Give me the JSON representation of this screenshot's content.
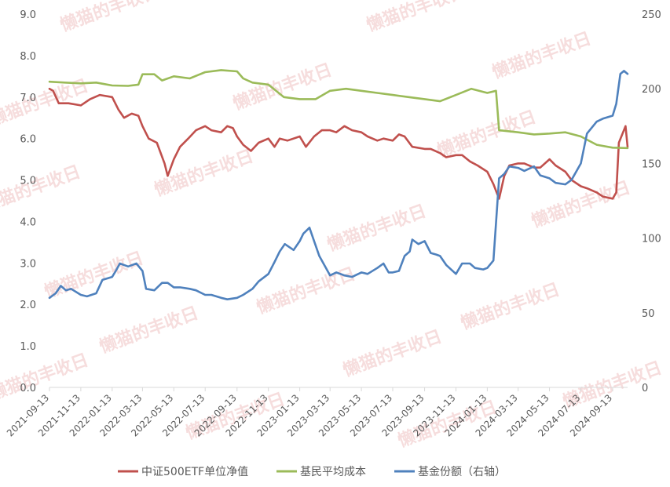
{
  "chart_data": {
    "type": "line",
    "title": "",
    "xlabel": "",
    "ylabel": "",
    "y_left": {
      "ylim": [
        0,
        9
      ],
      "ticks": [
        "0.0",
        "1.0",
        "2.0",
        "3.0",
        "4.0",
        "5.0",
        "6.0",
        "7.0",
        "8.0",
        "9.0"
      ]
    },
    "y_right": {
      "ylim": [
        0,
        250
      ],
      "ticks": [
        "0",
        "50",
        "100",
        "150",
        "200",
        "250"
      ]
    },
    "x_ticks": [
      "2021-09-13",
      "2021-11-13",
      "2022-01-13",
      "2022-03-13",
      "2022-05-13",
      "2022-07-13",
      "2022-09-13",
      "2022-11-13",
      "2023-01-13",
      "2023-03-13",
      "2023-05-13",
      "2023-07-13",
      "2023-09-13",
      "2023-11-13",
      "2024-01-13",
      "2024-03-13",
      "2024-05-13",
      "2024-07-13",
      "2024-09-13"
    ],
    "grid": false,
    "legend_position": "bottom",
    "series": [
      {
        "name": "中证500ETF单位净值",
        "axis": "left",
        "color": "#c0504d",
        "points": [
          [
            "2021-09-13",
            7.2
          ],
          [
            "2021-09-20",
            7.15
          ],
          [
            "2021-10-01",
            6.85
          ],
          [
            "2021-10-20",
            6.85
          ],
          [
            "2021-11-13",
            6.8
          ],
          [
            "2021-12-01",
            6.95
          ],
          [
            "2021-12-20",
            7.05
          ],
          [
            "2022-01-13",
            7.0
          ],
          [
            "2022-01-25",
            6.7
          ],
          [
            "2022-02-05",
            6.5
          ],
          [
            "2022-02-20",
            6.6
          ],
          [
            "2022-03-05",
            6.55
          ],
          [
            "2022-03-13",
            6.3
          ],
          [
            "2022-03-25",
            6.0
          ],
          [
            "2022-04-10",
            5.9
          ],
          [
            "2022-04-25",
            5.4
          ],
          [
            "2022-05-01",
            5.1
          ],
          [
            "2022-05-13",
            5.5
          ],
          [
            "2022-05-25",
            5.8
          ],
          [
            "2022-06-10",
            6.0
          ],
          [
            "2022-06-25",
            6.2
          ],
          [
            "2022-07-13",
            6.3
          ],
          [
            "2022-07-25",
            6.2
          ],
          [
            "2022-08-13",
            6.15
          ],
          [
            "2022-08-25",
            6.3
          ],
          [
            "2022-09-05",
            6.25
          ],
          [
            "2022-09-13",
            6.05
          ],
          [
            "2022-09-25",
            5.85
          ],
          [
            "2022-10-10",
            5.7
          ],
          [
            "2022-10-25",
            5.9
          ],
          [
            "2022-11-13",
            6.0
          ],
          [
            "2022-11-25",
            5.8
          ],
          [
            "2022-12-05",
            6.0
          ],
          [
            "2022-12-20",
            5.95
          ],
          [
            "2023-01-13",
            6.05
          ],
          [
            "2023-01-25",
            5.8
          ],
          [
            "2023-02-10",
            6.05
          ],
          [
            "2023-02-25",
            6.2
          ],
          [
            "2023-03-13",
            6.2
          ],
          [
            "2023-03-25",
            6.15
          ],
          [
            "2023-04-10",
            6.3
          ],
          [
            "2023-04-25",
            6.2
          ],
          [
            "2023-05-13",
            6.15
          ],
          [
            "2023-05-25",
            6.05
          ],
          [
            "2023-06-13",
            5.95
          ],
          [
            "2023-06-25",
            6.0
          ],
          [
            "2023-07-13",
            5.95
          ],
          [
            "2023-07-25",
            6.1
          ],
          [
            "2023-08-05",
            6.05
          ],
          [
            "2023-08-20",
            5.8
          ],
          [
            "2023-09-13",
            5.75
          ],
          [
            "2023-09-25",
            5.75
          ],
          [
            "2023-10-13",
            5.65
          ],
          [
            "2023-10-25",
            5.55
          ],
          [
            "2023-11-13",
            5.6
          ],
          [
            "2023-11-25",
            5.6
          ],
          [
            "2023-12-10",
            5.45
          ],
          [
            "2023-12-25",
            5.35
          ],
          [
            "2024-01-13",
            5.2
          ],
          [
            "2024-01-25",
            4.9
          ],
          [
            "2024-02-05",
            4.55
          ],
          [
            "2024-02-15",
            5.1
          ],
          [
            "2024-02-25",
            5.35
          ],
          [
            "2024-03-13",
            5.4
          ],
          [
            "2024-03-25",
            5.4
          ],
          [
            "2024-04-13",
            5.3
          ],
          [
            "2024-04-25",
            5.3
          ],
          [
            "2024-05-13",
            5.5
          ],
          [
            "2024-05-25",
            5.35
          ],
          [
            "2024-06-13",
            5.2
          ],
          [
            "2024-06-25",
            5.0
          ],
          [
            "2024-07-13",
            4.85
          ],
          [
            "2024-07-25",
            4.8
          ],
          [
            "2024-08-13",
            4.7
          ],
          [
            "2024-08-25",
            4.6
          ],
          [
            "2024-09-13",
            4.55
          ],
          [
            "2024-09-20",
            4.7
          ],
          [
            "2024-09-25",
            5.9
          ],
          [
            "2024-10-08",
            6.3
          ],
          [
            "2024-10-12",
            5.8
          ]
        ]
      },
      {
        "name": "基民平均成本",
        "axis": "left",
        "color": "#9bbb59",
        "points": [
          [
            "2021-09-13",
            7.37
          ],
          [
            "2021-10-13",
            7.35
          ],
          [
            "2021-11-13",
            7.33
          ],
          [
            "2021-12-13",
            7.35
          ],
          [
            "2022-01-13",
            7.28
          ],
          [
            "2022-02-13",
            7.27
          ],
          [
            "2022-03-05",
            7.3
          ],
          [
            "2022-03-13",
            7.55
          ],
          [
            "2022-04-05",
            7.55
          ],
          [
            "2022-04-20",
            7.4
          ],
          [
            "2022-05-13",
            7.5
          ],
          [
            "2022-06-13",
            7.45
          ],
          [
            "2022-07-13",
            7.6
          ],
          [
            "2022-08-13",
            7.65
          ],
          [
            "2022-09-13",
            7.62
          ],
          [
            "2022-09-25",
            7.45
          ],
          [
            "2022-10-13",
            7.35
          ],
          [
            "2022-11-13",
            7.3
          ],
          [
            "2022-12-13",
            7.0
          ],
          [
            "2023-01-13",
            6.95
          ],
          [
            "2023-02-13",
            6.95
          ],
          [
            "2023-03-13",
            7.15
          ],
          [
            "2023-04-13",
            7.2
          ],
          [
            "2023-05-13",
            7.15
          ],
          [
            "2023-06-13",
            7.1
          ],
          [
            "2023-07-13",
            7.05
          ],
          [
            "2023-08-13",
            7.0
          ],
          [
            "2023-09-13",
            6.95
          ],
          [
            "2023-10-13",
            6.9
          ],
          [
            "2023-11-13",
            7.05
          ],
          [
            "2023-12-13",
            7.2
          ],
          [
            "2024-01-13",
            7.1
          ],
          [
            "2024-01-30",
            7.15
          ],
          [
            "2024-02-05",
            6.2
          ],
          [
            "2024-03-13",
            6.15
          ],
          [
            "2024-04-13",
            6.1
          ],
          [
            "2024-05-13",
            6.12
          ],
          [
            "2024-06-13",
            6.15
          ],
          [
            "2024-07-13",
            6.05
          ],
          [
            "2024-08-13",
            5.85
          ],
          [
            "2024-09-13",
            5.78
          ],
          [
            "2024-10-12",
            5.77
          ]
        ]
      },
      {
        "name": "基金份额（右轴）",
        "axis": "right",
        "color": "#4f81bd",
        "points": [
          [
            "2021-09-13",
            60
          ],
          [
            "2021-09-25",
            63
          ],
          [
            "2021-10-05",
            68
          ],
          [
            "2021-10-15",
            65
          ],
          [
            "2021-10-25",
            66
          ],
          [
            "2021-11-13",
            62
          ],
          [
            "2021-11-25",
            61
          ],
          [
            "2021-12-13",
            63
          ],
          [
            "2021-12-25",
            72
          ],
          [
            "2022-01-13",
            74
          ],
          [
            "2022-01-20",
            78
          ],
          [
            "2022-01-28",
            83
          ],
          [
            "2022-02-13",
            81
          ],
          [
            "2022-03-01",
            83
          ],
          [
            "2022-03-13",
            78
          ],
          [
            "2022-03-20",
            66
          ],
          [
            "2022-04-05",
            65
          ],
          [
            "2022-04-20",
            70
          ],
          [
            "2022-05-01",
            70
          ],
          [
            "2022-05-13",
            67
          ],
          [
            "2022-05-25",
            67
          ],
          [
            "2022-06-13",
            66
          ],
          [
            "2022-06-25",
            65
          ],
          [
            "2022-07-13",
            62
          ],
          [
            "2022-07-25",
            62
          ],
          [
            "2022-08-13",
            60
          ],
          [
            "2022-08-25",
            59
          ],
          [
            "2022-09-13",
            60
          ],
          [
            "2022-09-25",
            62
          ],
          [
            "2022-10-13",
            66
          ],
          [
            "2022-10-25",
            71
          ],
          [
            "2022-11-13",
            76
          ],
          [
            "2022-11-25",
            84
          ],
          [
            "2022-12-05",
            91
          ],
          [
            "2022-12-15",
            96
          ],
          [
            "2023-01-01",
            92
          ],
          [
            "2023-01-13",
            98
          ],
          [
            "2023-01-20",
            103
          ],
          [
            "2023-02-01",
            107
          ],
          [
            "2023-02-10",
            98
          ],
          [
            "2023-02-20",
            88
          ],
          [
            "2023-03-05",
            80
          ],
          [
            "2023-03-13",
            75
          ],
          [
            "2023-03-25",
            77
          ],
          [
            "2023-04-10",
            75
          ],
          [
            "2023-04-25",
            74
          ],
          [
            "2023-05-13",
            77
          ],
          [
            "2023-05-25",
            76
          ],
          [
            "2023-06-13",
            80
          ],
          [
            "2023-06-25",
            83
          ],
          [
            "2023-07-05",
            77
          ],
          [
            "2023-07-13",
            77
          ],
          [
            "2023-07-25",
            78
          ],
          [
            "2023-08-05",
            88
          ],
          [
            "2023-08-15",
            91
          ],
          [
            "2023-08-20",
            99
          ],
          [
            "2023-09-01",
            96
          ],
          [
            "2023-09-13",
            98
          ],
          [
            "2023-09-25",
            90
          ],
          [
            "2023-10-05",
            89
          ],
          [
            "2023-10-13",
            88
          ],
          [
            "2023-10-25",
            82
          ],
          [
            "2023-11-13",
            76
          ],
          [
            "2023-11-25",
            83
          ],
          [
            "2023-12-10",
            83
          ],
          [
            "2023-12-20",
            80
          ],
          [
            "2024-01-05",
            79
          ],
          [
            "2024-01-13",
            80
          ],
          [
            "2024-01-25",
            85
          ],
          [
            "2024-02-05",
            140
          ],
          [
            "2024-02-15",
            143
          ],
          [
            "2024-02-25",
            148
          ],
          [
            "2024-03-13",
            147
          ],
          [
            "2024-03-25",
            145
          ],
          [
            "2024-04-13",
            148
          ],
          [
            "2024-04-25",
            142
          ],
          [
            "2024-05-13",
            140
          ],
          [
            "2024-05-25",
            137
          ],
          [
            "2024-06-13",
            136
          ],
          [
            "2024-06-25",
            139
          ],
          [
            "2024-07-13",
            150
          ],
          [
            "2024-07-25",
            170
          ],
          [
            "2024-08-13",
            178
          ],
          [
            "2024-08-25",
            180
          ],
          [
            "2024-09-13",
            182
          ],
          [
            "2024-09-20",
            190
          ],
          [
            "2024-09-28",
            210
          ],
          [
            "2024-10-05",
            212
          ],
          [
            "2024-10-12",
            210
          ]
        ]
      }
    ]
  },
  "watermark_text": "懒猫的丰收日",
  "colors": {
    "axis_text": "#595959",
    "watermark": "#e8a0a0"
  }
}
